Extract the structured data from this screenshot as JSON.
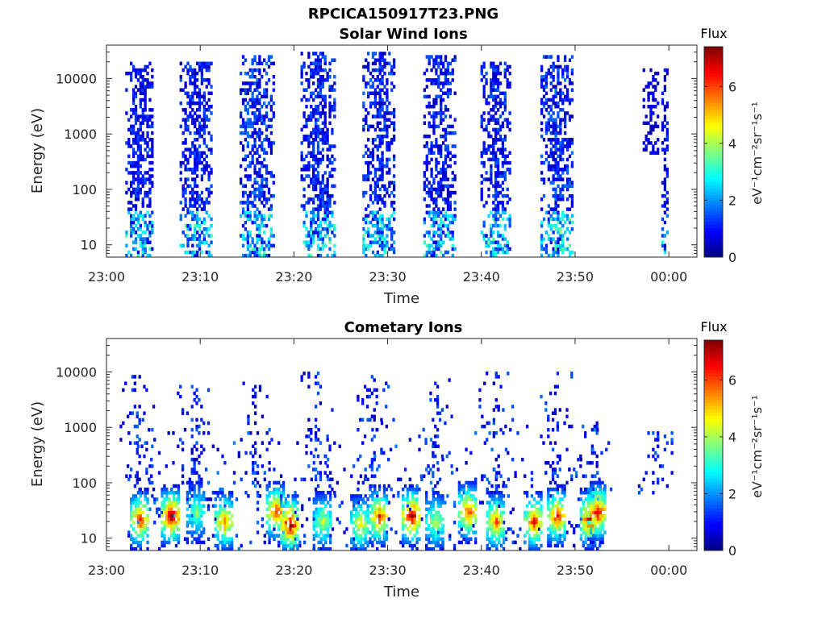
{
  "chart_data": [
    {
      "type": "heatmap",
      "title": "RPCICA150917T23.PNG",
      "subtitle": "Solar Wind Ions",
      "xlabel": "Time",
      "ylabel": "Energy (eV)",
      "x_ticks": [
        "23:00",
        "23:10",
        "23:20",
        "23:30",
        "23:40",
        "23:50",
        "00:00"
      ],
      "x_range_minutes": [
        0,
        63
      ],
      "y_scale": "log",
      "y_ticks": [
        "10",
        "100",
        "1000",
        "10000"
      ],
      "y_range": [
        6,
        40000
      ],
      "grid": false,
      "colorbar": {
        "title": "Flux",
        "label": "eV⁻¹cm⁻²sr⁻¹s⁻¹",
        "ticks": [
          "0",
          "2",
          "4",
          "6"
        ],
        "range": [
          0,
          7.4
        ],
        "colormap": "jet"
      },
      "bursts": [
        {
          "t": 3.5,
          "width": 3.0,
          "e_low": 6,
          "e_high": 20000,
          "intensity": 1.2
        },
        {
          "t": 9.5,
          "width": 3.4,
          "e_low": 6,
          "e_high": 20000,
          "intensity": 1.3
        },
        {
          "t": 16.0,
          "width": 3.6,
          "e_low": 6,
          "e_high": 25000,
          "intensity": 1.6
        },
        {
          "t": 22.5,
          "width": 3.6,
          "e_low": 6,
          "e_high": 30000,
          "intensity": 1.4
        },
        {
          "t": 29.0,
          "width": 3.4,
          "e_low": 6,
          "e_high": 30000,
          "intensity": 1.4
        },
        {
          "t": 35.5,
          "width": 3.4,
          "e_low": 6,
          "e_high": 25000,
          "intensity": 1.3
        },
        {
          "t": 41.5,
          "width": 3.2,
          "e_low": 6,
          "e_high": 20000,
          "intensity": 1.3
        },
        {
          "t": 48.0,
          "width": 3.4,
          "e_low": 6,
          "e_high": 25000,
          "intensity": 1.5
        },
        {
          "t": 58.0,
          "width": 1.6,
          "e_low": 400,
          "e_high": 15000,
          "intensity": 0.8
        },
        {
          "t": 59.5,
          "width": 0.6,
          "e_low": 6,
          "e_high": 15000,
          "intensity": 1.0
        }
      ]
    },
    {
      "type": "heatmap",
      "title": "Cometary Ions",
      "xlabel": "Time",
      "ylabel": "Energy (eV)",
      "x_ticks": [
        "23:00",
        "23:10",
        "23:20",
        "23:30",
        "23:40",
        "23:50",
        "00:00"
      ],
      "x_range_minutes": [
        0,
        63
      ],
      "y_scale": "log",
      "y_ticks": [
        "10",
        "100",
        "1000",
        "10000"
      ],
      "y_range": [
        6,
        40000
      ],
      "grid": false,
      "colorbar": {
        "title": "Flux",
        "label": "eV⁻¹cm⁻²sr⁻¹s⁻¹",
        "ticks": [
          "0",
          "2",
          "4",
          "6"
        ],
        "range": [
          0,
          7.4
        ],
        "colormap": "jet"
      },
      "ion_bands": [
        {
          "t": 3.5,
          "e_center": 22,
          "peak": 5.5
        },
        {
          "t": 6.8,
          "e_center": 25,
          "peak": 6.5
        },
        {
          "t": 9.5,
          "e_center": 30,
          "peak": 3.0
        },
        {
          "t": 12.5,
          "e_center": 20,
          "peak": 5.0
        },
        {
          "t": 18.0,
          "e_center": 30,
          "peak": 5.5
        },
        {
          "t": 19.5,
          "e_center": 18,
          "peak": 6.5
        },
        {
          "t": 23.0,
          "e_center": 20,
          "peak": 3.5
        },
        {
          "t": 27.0,
          "e_center": 18,
          "peak": 4.0
        },
        {
          "t": 29.0,
          "e_center": 25,
          "peak": 5.5
        },
        {
          "t": 32.5,
          "e_center": 25,
          "peak": 6.5
        },
        {
          "t": 35.0,
          "e_center": 20,
          "peak": 3.5
        },
        {
          "t": 38.5,
          "e_center": 30,
          "peak": 5.5
        },
        {
          "t": 41.5,
          "e_center": 20,
          "peak": 5.0
        },
        {
          "t": 45.5,
          "e_center": 20,
          "peak": 5.5
        },
        {
          "t": 48.0,
          "e_center": 25,
          "peak": 5.5
        },
        {
          "t": 51.5,
          "e_center": 22,
          "peak": 6.0
        },
        {
          "t": 52.3,
          "e_center": 30,
          "peak": 6.0
        }
      ],
      "sparse_bursts": [
        {
          "t": 3.2,
          "e_high": 9000
        },
        {
          "t": 9.3,
          "e_high": 6000
        },
        {
          "t": 15.8,
          "e_high": 7000
        },
        {
          "t": 22.5,
          "e_high": 10000
        },
        {
          "t": 28.5,
          "e_high": 10000
        },
        {
          "t": 35.0,
          "e_high": 8000
        },
        {
          "t": 41.5,
          "e_high": 10000
        },
        {
          "t": 47.8,
          "e_high": 10000
        },
        {
          "t": 52.0,
          "e_high": 1500
        },
        {
          "t": 58.5,
          "e_high": 900
        }
      ]
    }
  ]
}
